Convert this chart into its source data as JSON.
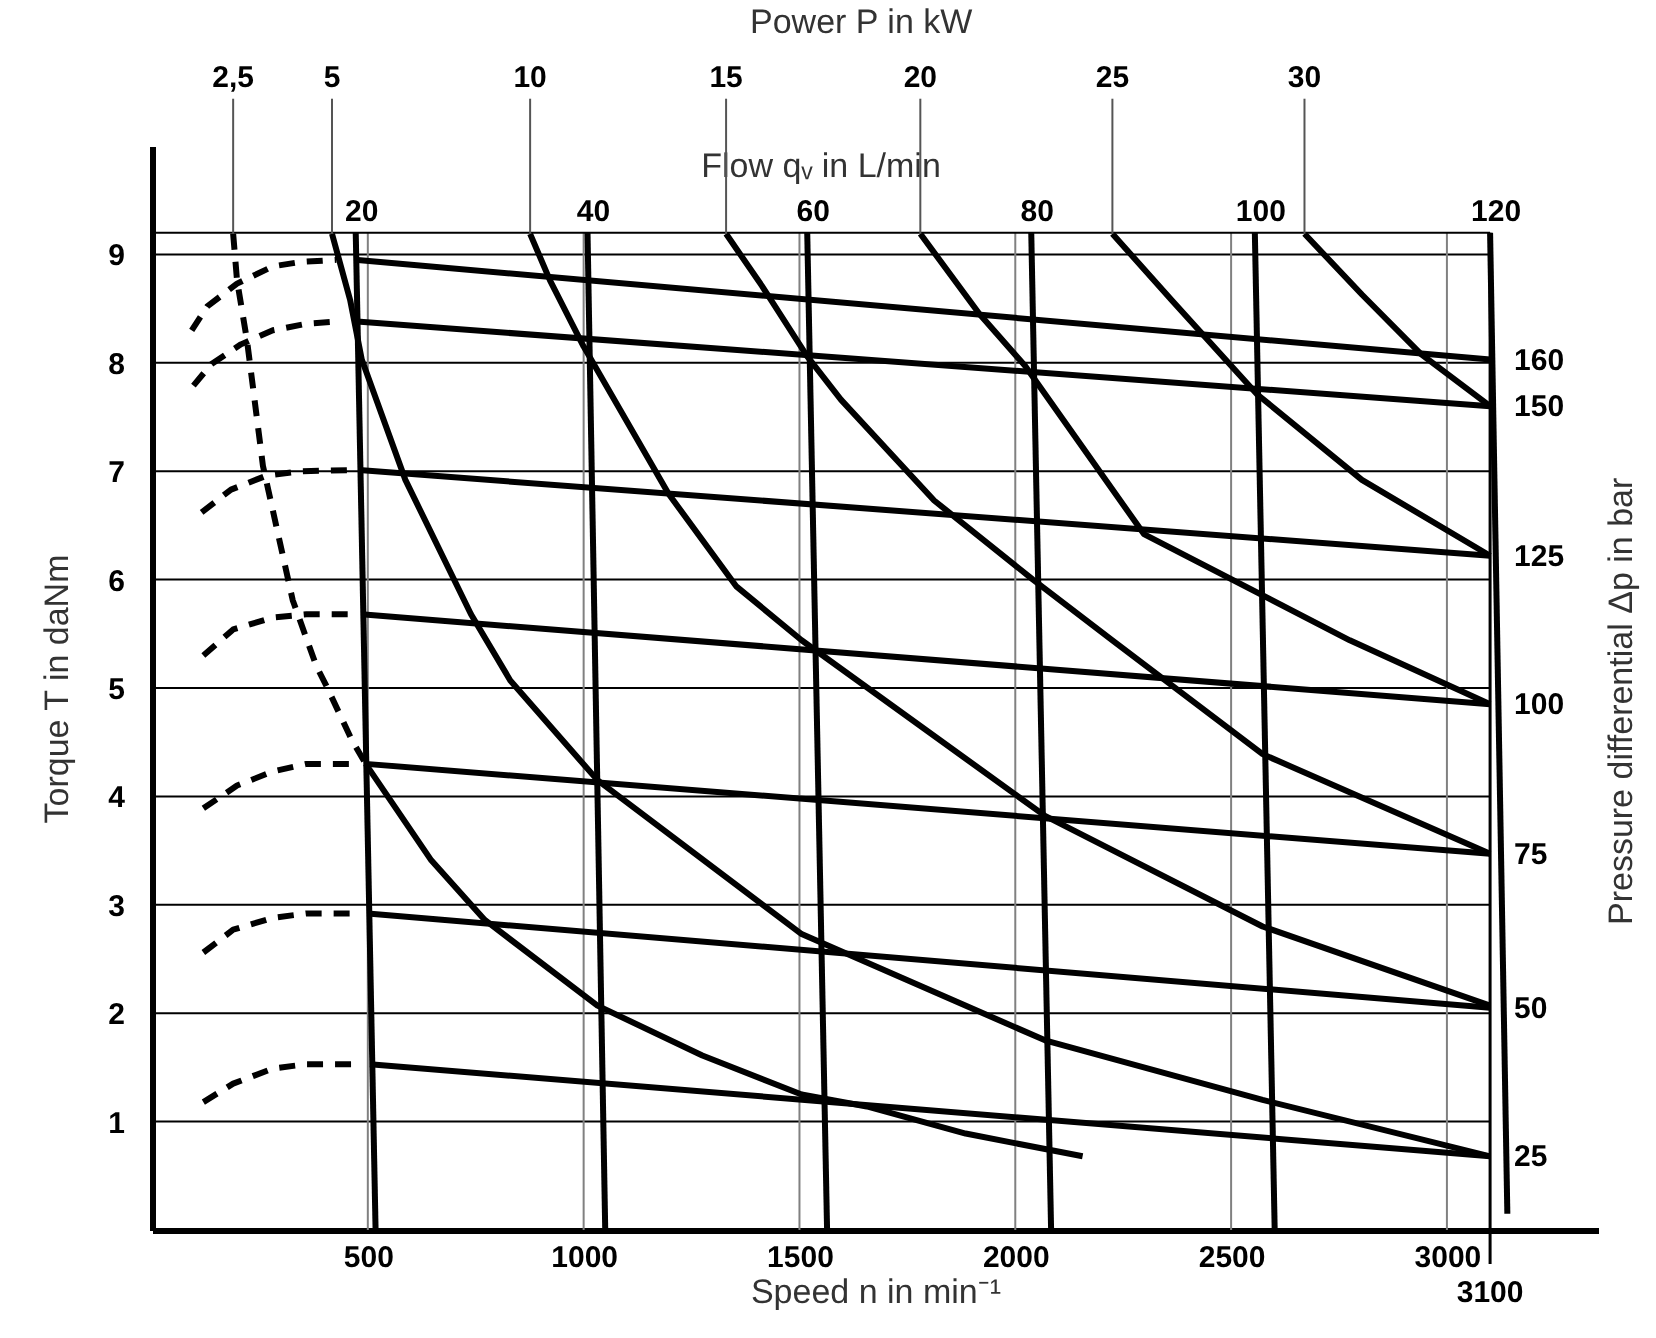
{
  "chart_data": {
    "type": "line",
    "xlabel": "Speed n in min⁻¹",
    "ylabel": "Torque T in daNm",
    "y2label": "Pressure differential Δp in bar",
    "annotations": [
      "Power P in kW",
      "Flow qᵥ in L/min",
      {
        "text": "2,5",
        "x": 188,
        "y": 9.19
      },
      {
        "text": "5",
        "x": 417,
        "y": 9.19
      },
      {
        "text": "10",
        "x": 876,
        "y": 9.19
      },
      {
        "text": "15",
        "x": 1330,
        "y": 9.19
      },
      {
        "text": "20",
        "x": 1780,
        "y": 9.19
      },
      {
        "text": "25",
        "x": 2225,
        "y": 9.19
      },
      {
        "text": "30",
        "x": 2670,
        "y": 9.19
      }
    ],
    "xlim": [
      0,
      3350
    ],
    "ylim": [
      0,
      10
    ],
    "xticks": [
      500,
      1000,
      1500,
      2000,
      2500,
      3000
    ],
    "yticks": [
      1,
      2,
      3,
      4,
      5,
      6,
      7,
      8,
      9
    ],
    "ref_lines": [
      {
        "axis": "x",
        "value": 3100,
        "label": "3100"
      }
    ],
    "grid": true,
    "series": [
      {
        "color": "#000000",
        "line_style": "dashed",
        "x": [
          188,
          197,
          220,
          257,
          326,
          381,
          404,
          463,
          495
        ],
        "values": [
          9.19,
          8.76,
          8.21,
          7.05,
          5.81,
          5.2,
          5.02,
          4.52,
          4.3
        ]
      },
      {
        "color": "#000000",
        "line_style": "solid",
        "x": [
          495,
          647,
          771,
          1032,
          1275,
          1505,
          1656,
          1885,
          2156
        ],
        "values": [
          4.3,
          3.41,
          2.86,
          2.07,
          1.61,
          1.25,
          1.14,
          0.89,
          0.68
        ]
      },
      {
        "color": "#000000",
        "line_style": "solid",
        "x": [
          417,
          459,
          486,
          587,
          739,
          830,
          1032,
          1505,
          2069,
          2573,
          3100
        ],
        "values": [
          9.19,
          8.58,
          8.03,
          6.92,
          5.68,
          5.07,
          4.15,
          2.73,
          1.75,
          1.2,
          0.68
        ]
      },
      {
        "color": "#000000",
        "line_style": "solid",
        "x": [
          876,
          922,
          1000,
          1197,
          1353,
          1505,
          2069,
          2573,
          3100
        ],
        "values": [
          9.19,
          8.76,
          8.15,
          6.79,
          5.94,
          5.44,
          3.82,
          2.8,
          2.07
        ]
      },
      {
        "color": "#000000",
        "line_style": "solid",
        "x": [
          1330,
          1413,
          1518,
          1596,
          1812,
          2041,
          2225,
          2573,
          3100
        ],
        "values": [
          9.19,
          8.71,
          8.06,
          7.66,
          6.73,
          6.0,
          5.44,
          4.39,
          3.47
        ]
      },
      {
        "color": "#000000",
        "line_style": "solid",
        "x": [
          1780,
          1917,
          2023,
          2298,
          2775,
          3100
        ],
        "values": [
          9.19,
          8.45,
          7.97,
          6.42,
          5.44,
          4.85
        ]
      },
      {
        "color": "#000000",
        "line_style": "solid",
        "x": [
          2225,
          2362,
          2560,
          2803,
          3100
        ],
        "values": [
          9.19,
          8.58,
          7.71,
          6.92,
          6.22
        ]
      },
      {
        "color": "#000000",
        "line_style": "solid",
        "x": [
          2670,
          2803,
          2940,
          3100
        ],
        "values": [
          9.19,
          8.63,
          8.08,
          7.6
        ]
      },
      {
        "name": "20",
        "color": "#000000",
        "line_style": "solid",
        "x": [
          472,
          518
        ],
        "values": [
          9.2,
          0
        ]
      },
      {
        "name": "40",
        "color": "#000000",
        "line_style": "solid",
        "x": [
          1009,
          1050
        ],
        "values": [
          9.2,
          0
        ]
      },
      {
        "name": "60",
        "color": "#000000",
        "line_style": "solid",
        "x": [
          1518,
          1564
        ],
        "values": [
          9.2,
          0
        ]
      },
      {
        "name": "80",
        "color": "#000000",
        "line_style": "solid",
        "x": [
          2037,
          2083
        ],
        "values": [
          9.2,
          0
        ]
      },
      {
        "name": "100",
        "color": "#000000",
        "line_style": "solid",
        "x": [
          2555,
          2601
        ],
        "values": [
          9.2,
          0
        ]
      },
      {
        "name": "120",
        "color": "#000000",
        "line_style": "solid",
        "x": [
          3100,
          3140
        ],
        "values": [
          9.2,
          0.15
        ]
      },
      {
        "color": "#000000",
        "line_style": "dashed",
        "x": [
          92,
          128,
          197,
          280,
          344,
          427
        ],
        "values": [
          8.3,
          8.52,
          8.73,
          8.89,
          8.93,
          8.95
        ]
      },
      {
        "color": "#000000",
        "line_style": "dashed",
        "x": [
          96,
          138,
          206,
          280,
          358,
          427
        ],
        "values": [
          7.79,
          7.99,
          8.17,
          8.3,
          8.36,
          8.38
        ]
      },
      {
        "color": "#000000",
        "line_style": "dashed",
        "x": [
          115,
          183,
          266,
          344,
          463
        ],
        "values": [
          6.62,
          6.83,
          6.96,
          7.0,
          7.01
        ]
      },
      {
        "color": "#000000",
        "line_style": "dashed",
        "x": [
          119,
          188,
          280,
          358,
          463
        ],
        "values": [
          5.3,
          5.54,
          5.65,
          5.68,
          5.68
        ]
      },
      {
        "color": "#000000",
        "line_style": "dashed",
        "x": [
          119,
          197,
          280,
          358,
          463
        ],
        "values": [
          3.89,
          4.1,
          4.23,
          4.3,
          4.3
        ]
      },
      {
        "color": "#000000",
        "line_style": "dashed",
        "x": [
          119,
          188,
          280,
          358,
          463
        ],
        "values": [
          2.56,
          2.77,
          2.88,
          2.92,
          2.92
        ]
      },
      {
        "color": "#000000",
        "line_style": "dashed",
        "x": [
          119,
          188,
          280,
          358,
          463
        ],
        "values": [
          1.18,
          1.35,
          1.49,
          1.53,
          1.53
        ]
      },
      {
        "name": "160",
        "color": "#000000",
        "line_style": "solid",
        "x": [
          470,
          3100
        ],
        "values": [
          8.95,
          8.03
        ]
      },
      {
        "name": "150",
        "color": "#000000",
        "line_style": "solid",
        "x": [
          475,
          3100
        ],
        "values": [
          8.38,
          7.6
        ]
      },
      {
        "name": "125",
        "color": "#000000",
        "line_style": "solid",
        "x": [
          480,
          3100
        ],
        "values": [
          7.01,
          6.22
        ]
      },
      {
        "name": "100",
        "color": "#000000",
        "line_style": "solid",
        "x": [
          485,
          3100
        ],
        "values": [
          5.68,
          4.85
        ]
      },
      {
        "name": "75",
        "color": "#000000",
        "line_style": "solid",
        "x": [
          495,
          3100
        ],
        "values": [
          4.3,
          3.47
        ]
      },
      {
        "name": "50",
        "color": "#000000",
        "line_style": "solid",
        "x": [
          500,
          3100
        ],
        "values": [
          2.92,
          2.05
        ]
      },
      {
        "name": "25",
        "color": "#000000",
        "line_style": "solid",
        "x": [
          505,
          3100
        ],
        "values": [
          1.53,
          0.68
        ]
      }
    ]
  }
}
